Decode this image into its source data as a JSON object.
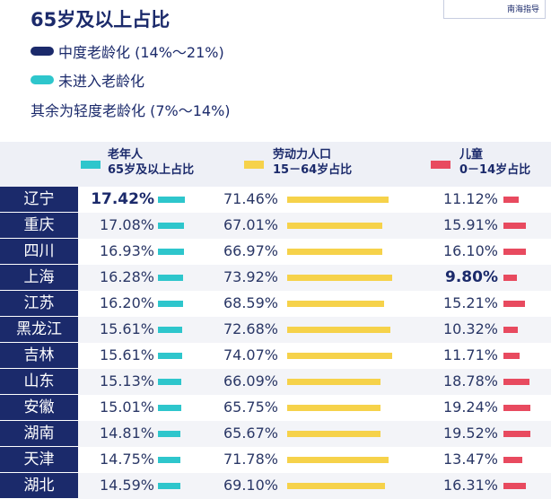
{
  "header": {
    "title": "65岁及以上占比",
    "logo": "南海指导",
    "legend": [
      {
        "label": "中度老龄化 (14%～21%)",
        "color": "#1b2a6b"
      },
      {
        "label": "未进入老龄化",
        "color": "#2ec6cc"
      }
    ],
    "note": "其余为轻度老龄化 (7%～14%)"
  },
  "columns": [
    {
      "line1": "老年人",
      "line2": "65岁及以上占比",
      "color": "#2ec6cc"
    },
    {
      "line1": "劳动力人口",
      "line2": "15－64岁占比",
      "color": "#f6d24a"
    },
    {
      "line1": "儿童",
      "line2": "0－14岁占比",
      "color": "#e84a5f"
    }
  ],
  "chart_data": {
    "type": "table",
    "categories": [
      "辽宁",
      "重庆",
      "四川",
      "上海",
      "江苏",
      "黑龙江",
      "吉林",
      "山东",
      "安徽",
      "湖南",
      "天津",
      "湖北"
    ],
    "series": [
      {
        "name": "老年人 65岁及以上占比",
        "values": [
          17.42,
          17.08,
          16.93,
          16.28,
          16.2,
          15.61,
          15.61,
          15.13,
          15.01,
          14.81,
          14.75,
          14.59
        ],
        "labels": [
          "17.42%",
          "17.08%",
          "16.93%",
          "16.28%",
          "16.20%",
          "15.61%",
          "15.61%",
          "15.13%",
          "15.01%",
          "14.81%",
          "14.75%",
          "14.59%"
        ]
      },
      {
        "name": "劳动力人口 15－64岁占比",
        "values": [
          71.46,
          67.01,
          66.97,
          73.92,
          68.59,
          72.68,
          74.07,
          66.09,
          65.75,
          65.67,
          71.78,
          69.1
        ],
        "labels": [
          "71.46%",
          "67.01%",
          "66.97%",
          "73.92%",
          "68.59%",
          "72.68%",
          "74.07%",
          "66.09%",
          "65.75%",
          "65.67%",
          "71.78%",
          "69.10%"
        ]
      },
      {
        "name": "儿童 0－14岁占比",
        "values": [
          11.12,
          15.91,
          16.1,
          9.8,
          15.21,
          10.32,
          11.71,
          18.78,
          19.24,
          19.52,
          13.47,
          16.31
        ],
        "labels": [
          "11.12%",
          "15.91%",
          "16.10%",
          "9.80%",
          "15.21%",
          "10.32%",
          "11.71%",
          "18.78%",
          "19.24%",
          "19.52%",
          "13.47%",
          "16.31%"
        ]
      }
    ],
    "highlights": [
      {
        "series": 0,
        "row": 0
      },
      {
        "series": 2,
        "row": 3
      }
    ]
  }
}
